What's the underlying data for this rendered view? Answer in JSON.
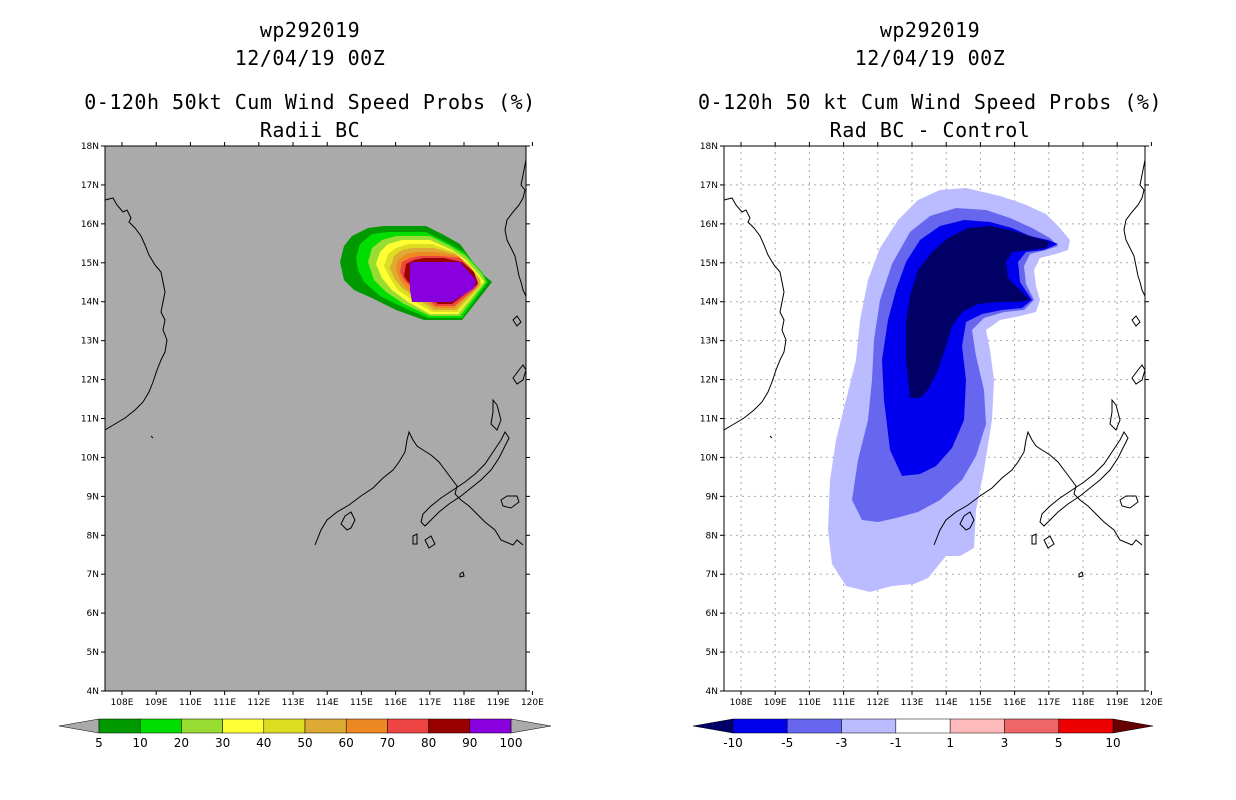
{
  "left_panel": {
    "storm_id": "wp292019",
    "datetime": "12/04/19 00Z",
    "product": "0-120h 50kt Cum Wind Speed Probs (%)",
    "subtitle": "Radii BC",
    "colorbar_labels": [
      "5",
      "10",
      "20",
      "30",
      "40",
      "50",
      "60",
      "70",
      "80",
      "90",
      "100"
    ],
    "colorbar_colors": [
      "#009900",
      "#00dd00",
      "#99dd33",
      "#ffff33",
      "#dddd22",
      "#ddaa33",
      "#ee8822",
      "#ee4444",
      "#990000",
      "#8800dd"
    ]
  },
  "right_panel": {
    "storm_id": "wp292019",
    "datetime": "12/04/19 00Z",
    "product": "0-120h 50 kt Cum Wind Speed Probs (%)",
    "subtitle": "Rad BC - Control",
    "colorbar_labels": [
      "-10",
      "-5",
      "-3",
      "-1",
      "1",
      "3",
      "5",
      "10"
    ],
    "colorbar_colors": [
      "#0000ee",
      "#6666ee",
      "#bbbbff",
      "#ffffff",
      "#ffbbbb",
      "#ee6666",
      "#ee0000"
    ]
  },
  "axes": {
    "lat_labels": [
      "18N",
      "17N",
      "16N",
      "15N",
      "14N",
      "13N",
      "12N",
      "11N",
      "10N",
      "9N",
      "8N",
      "7N",
      "6N",
      "5N",
      "4N"
    ],
    "lon_labels": [
      "108E",
      "109E",
      "110E",
      "111E",
      "112E",
      "113E",
      "114E",
      "115E",
      "116E",
      "117E",
      "118E",
      "119E",
      "120E"
    ]
  },
  "colors": {
    "land_sea_bg": "#aaaaaa",
    "coast": "#000000",
    "grid": "#aaaaaa"
  }
}
